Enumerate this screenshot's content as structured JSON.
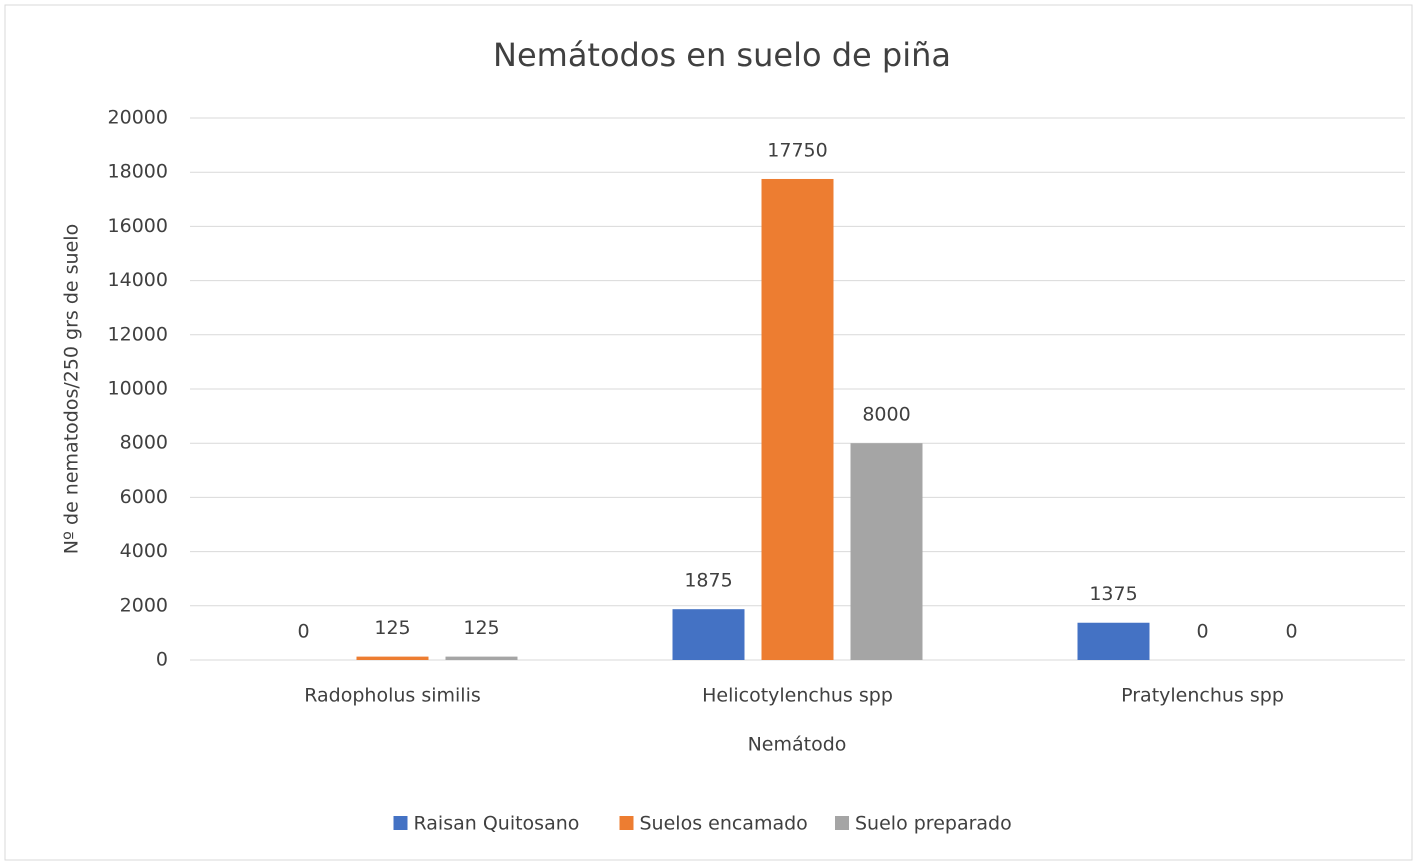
{
  "chart_data": {
    "type": "bar",
    "title": "Nemátodos en suelo de piña",
    "x_label": "Nemátodo",
    "y_label": "Nº de nematodos/250 grs de suelo",
    "categories": [
      "Radopholus similis",
      "Helicotylenchus spp",
      "Pratylenchus spp"
    ],
    "series": [
      {
        "name": "Raisan Quitosano",
        "color": "#4472c4",
        "values": [
          0,
          1875,
          1375
        ]
      },
      {
        "name": "Suelos encamado",
        "color": "#ed7d31",
        "values": [
          125,
          17750,
          0
        ]
      },
      {
        "name": "Suelo preparado",
        "color": "#a5a5a5",
        "values": [
          125,
          8000,
          0
        ]
      }
    ],
    "ylim": [
      0,
      20000
    ],
    "yticks": [
      0,
      2000,
      4000,
      6000,
      8000,
      10000,
      12000,
      14000,
      16000,
      18000,
      20000
    ],
    "grid": true,
    "legend": "bottom"
  }
}
